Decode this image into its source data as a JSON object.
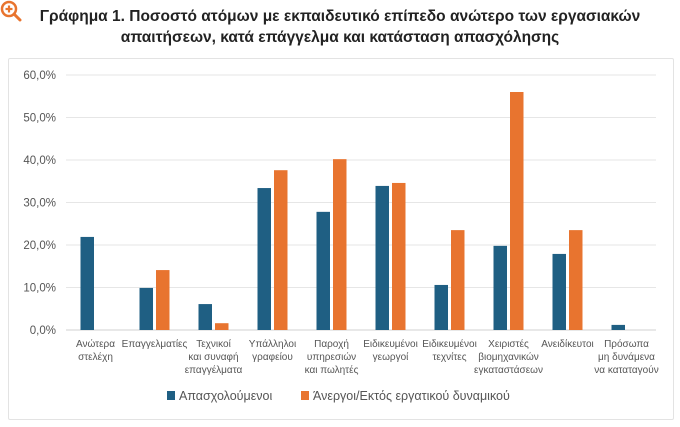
{
  "chart_data": {
    "type": "bar",
    "title": "Γράφημα 1. Ποσοστό ατόμων με εκπαιδευτικό επίπεδο ανώτερο των εργασιακών απαιτήσεων, κατά επάγγελμα και κατάσταση απασχόλησης",
    "title_lines": [
      "Γράφημα 1. Ποσοστό ατόμων με εκπαιδευτικό επίπεδο ανώτερο των εργασιακών",
      "απαιτήσεων, κατά επάγγελμα και κατάσταση απασχόλησης"
    ],
    "categories": [
      [
        "Ανώτερα",
        "στελέχη"
      ],
      [
        "Επαγγελματίες"
      ],
      [
        "Τεχνικοί",
        "και συναφή",
        "επαγγέλματα"
      ],
      [
        "Υπάλληλοι",
        "γραφείου"
      ],
      [
        "Παροχή",
        "υπηρεσιών",
        "και πωλητές"
      ],
      [
        "Ειδικευμένοι",
        "γεωργοί"
      ],
      [
        "Ειδικευμένοι",
        "τεχνίτες"
      ],
      [
        "Χειριστές",
        "βιομηχανικών",
        "εγκαταστάσεων"
      ],
      [
        "Ανειδίκευτοι"
      ],
      [
        "Πρόσωπα",
        "μη δυνάμενα",
        "να καταταγούν"
      ]
    ],
    "series": [
      {
        "name": "Απασχολούμενοι",
        "color": "#1f5f83",
        "values": [
          21.9,
          9.9,
          6.1,
          33.4,
          27.8,
          33.9,
          10.6,
          19.8,
          17.9,
          1.2
        ]
      },
      {
        "name": "Άνεργοι/Εκτός εργατικού δυναμικού",
        "color": "#e8742f",
        "values": [
          0,
          14.1,
          1.6,
          37.6,
          40.2,
          34.6,
          23.5,
          56.0,
          23.5,
          0
        ]
      }
    ],
    "yticks": [
      "0,0%",
      "10,0%",
      "20,0%",
      "30,0%",
      "40,0%",
      "50,0%",
      "60,0%"
    ],
    "ylim": [
      0,
      60
    ],
    "xlabel": "",
    "ylabel": "",
    "grid": true,
    "legend_placement": "bottom"
  }
}
